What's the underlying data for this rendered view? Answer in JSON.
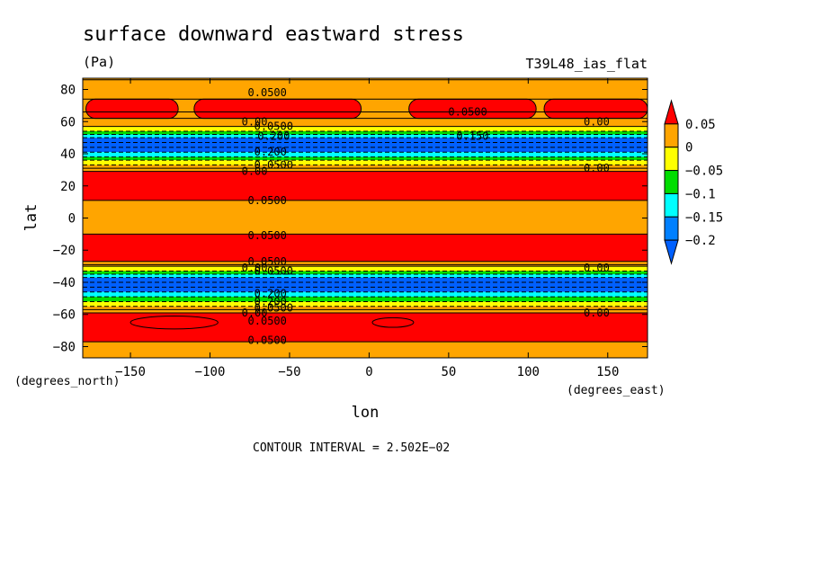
{
  "chart_data": {
    "type": "heatmap",
    "title": "surface downward eastward stress",
    "units": "(Pa)",
    "run_label": "T39L48_ias_flat",
    "xlabel": "lon",
    "ylabel": "lat",
    "x_units": "(degrees_east)",
    "y_units": "(degrees_north)",
    "xlim": [
      -180,
      175
    ],
    "ylim": [
      -87,
      87
    ],
    "x_ticks": [
      -150,
      -100,
      -50,
      0,
      50,
      100,
      150
    ],
    "x_tick_labels": [
      "−150",
      "−100",
      "−50",
      "0",
      "50",
      "100",
      "150"
    ],
    "y_ticks": [
      80,
      60,
      40,
      20,
      0,
      -20,
      -40,
      -60,
      -80
    ],
    "y_tick_labels": [
      "80",
      "60",
      "40",
      "20",
      "0",
      "−20",
      "−40",
      "−60",
      "−80"
    ],
    "footer": "CONTOUR INTERVAL = 2.502E−02",
    "colorbar": {
      "levels": [
        0.05,
        0,
        -0.05,
        -0.1,
        -0.15,
        -0.2
      ],
      "labels": [
        "0.05",
        "0",
        "−0.05",
        "−0.1",
        "−0.15",
        "−0.2"
      ],
      "colors": [
        "#ff0000",
        "#ffa500",
        "#ffff00",
        "#00dd00",
        "#00ffff",
        "#0080ff",
        "#0060ff"
      ]
    },
    "bands": [
      {
        "lat_top": 87,
        "lat_bottom": 66,
        "color": "#ffa500"
      },
      {
        "lat_top": 66,
        "lat_bottom": 57,
        "color": "#ffa500"
      },
      {
        "lat_top": 57,
        "lat_bottom": 54,
        "color": "#ffff00"
      },
      {
        "lat_top": 54,
        "lat_bottom": 52,
        "color": "#00dd00"
      },
      {
        "lat_top": 52,
        "lat_bottom": 50,
        "color": "#00ffff"
      },
      {
        "lat_top": 50,
        "lat_bottom": 41,
        "color": "#0060ff"
      },
      {
        "lat_top": 41,
        "lat_bottom": 38,
        "color": "#00ffff"
      },
      {
        "lat_top": 38,
        "lat_bottom": 36,
        "color": "#00dd00"
      },
      {
        "lat_top": 36,
        "lat_bottom": 33,
        "color": "#ffff00"
      },
      {
        "lat_top": 33,
        "lat_bottom": 29,
        "color": "#ffa500"
      },
      {
        "lat_top": 29,
        "lat_bottom": 11,
        "color": "#ff0000"
      },
      {
        "lat_top": 11,
        "lat_bottom": -10,
        "color": "#ffa500"
      },
      {
        "lat_top": -10,
        "lat_bottom": -27,
        "color": "#ff0000"
      },
      {
        "lat_top": -27,
        "lat_bottom": -30,
        "color": "#ffa500"
      },
      {
        "lat_top": -30,
        "lat_bottom": -33,
        "color": "#ffff00"
      },
      {
        "lat_top": -33,
        "lat_bottom": -35,
        "color": "#00dd00"
      },
      {
        "lat_top": -35,
        "lat_bottom": -37,
        "color": "#00ffff"
      },
      {
        "lat_top": -37,
        "lat_bottom": -46,
        "color": "#0060ff"
      },
      {
        "lat_top": -46,
        "lat_bottom": -49,
        "color": "#00ffff"
      },
      {
        "lat_top": -49,
        "lat_bottom": -52,
        "color": "#00dd00"
      },
      {
        "lat_top": -52,
        "lat_bottom": -55,
        "color": "#ffff00"
      },
      {
        "lat_top": -55,
        "lat_bottom": -59,
        "color": "#ffa500"
      },
      {
        "lat_top": -59,
        "lat_bottom": -77,
        "color": "#ff0000"
      },
      {
        "lat_top": -77,
        "lat_bottom": -87,
        "color": "#ffa500"
      }
    ],
    "highs": [
      {
        "lon_min": -178,
        "lon_max": -120,
        "lat_min": 62,
        "lat_max": 74,
        "color": "#ff0000"
      },
      {
        "lon_min": -110,
        "lon_max": -5,
        "lat_min": 62,
        "lat_max": 74,
        "color": "#ff0000"
      },
      {
        "lon_min": 25,
        "lon_max": 105,
        "lat_min": 62,
        "lat_max": 74,
        "color": "#ff0000"
      },
      {
        "lon_min": 110,
        "lon_max": 175,
        "lat_min": 62,
        "lat_max": 74,
        "color": "#ff0000"
      }
    ],
    "contour_lines_lat": [
      86,
      74,
      66,
      62,
      57,
      54,
      52,
      50,
      47,
      44,
      41,
      38,
      36,
      33,
      31,
      29,
      11,
      -10,
      -27,
      -29,
      -30,
      -33,
      -35,
      -37,
      -40,
      -43,
      -46,
      -49,
      -52,
      -55,
      -57,
      -59,
      -77
    ],
    "dashed_lat": [
      54,
      52,
      50,
      47,
      44,
      41,
      38,
      36,
      33,
      -33,
      -35,
      -37,
      -40,
      -43,
      -46,
      -49,
      -52,
      -55
    ],
    "inner_loops": [
      {
        "lon_min": -150,
        "lon_max": -95,
        "lat_min": -69,
        "lat_max": -61
      },
      {
        "lon_min": 2,
        "lon_max": 28,
        "lat_min": -68,
        "lat_max": -62
      }
    ],
    "contour_labels": [
      {
        "lon": -64,
        "lat": 78,
        "text": "0.0500"
      },
      {
        "lon": 62,
        "lat": 66,
        "text": "0.0500"
      },
      {
        "lon": -72,
        "lat": 60,
        "text": "0.00"
      },
      {
        "lon": -60,
        "lat": 57,
        "text": "0.0500"
      },
      {
        "lon": -60,
        "lat": 51,
        "text": "0.200"
      },
      {
        "lon": 65,
        "lat": 51,
        "text": "0.150"
      },
      {
        "lon": 143,
        "lat": 60,
        "text": "0.00"
      },
      {
        "lon": -62,
        "lat": 41,
        "text": "0.200"
      },
      {
        "lon": -60,
        "lat": 33,
        "text": "0.0500"
      },
      {
        "lon": -72,
        "lat": 29,
        "text": "0.00"
      },
      {
        "lon": 143,
        "lat": 31,
        "text": "0.00"
      },
      {
        "lon": -64,
        "lat": 11,
        "text": "0.0500"
      },
      {
        "lon": -64,
        "lat": -11,
        "text": "0.0500"
      },
      {
        "lon": -64,
        "lat": -27,
        "text": "0.0500"
      },
      {
        "lon": -72,
        "lat": -31,
        "text": "0.00"
      },
      {
        "lon": 143,
        "lat": -31,
        "text": "0.00"
      },
      {
        "lon": -60,
        "lat": -33,
        "text": "0.0500"
      },
      {
        "lon": -62,
        "lat": -47,
        "text": "0.200"
      },
      {
        "lon": -62,
        "lat": -52,
        "text": "0.200"
      },
      {
        "lon": -60,
        "lat": -56,
        "text": "0.0500"
      },
      {
        "lon": -72,
        "lat": -59,
        "text": "0.00"
      },
      {
        "lon": 143,
        "lat": -59,
        "text": "0.00"
      },
      {
        "lon": -64,
        "lat": -64,
        "text": "0.0500"
      },
      {
        "lon": -64,
        "lat": -76,
        "text": "0.0500"
      }
    ]
  }
}
